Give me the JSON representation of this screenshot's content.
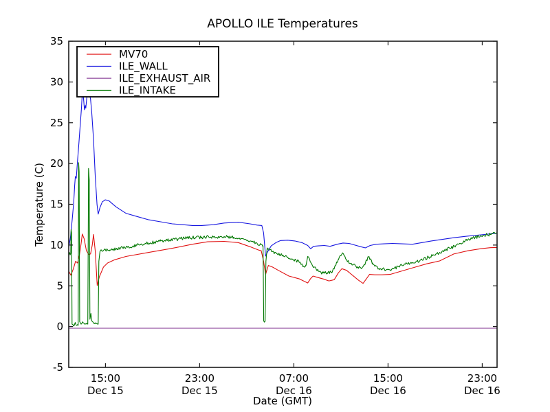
{
  "figure": {
    "background": "#ffffff",
    "axes_color": "#1a1a1a"
  },
  "chart_data": {
    "type": "line",
    "title": "APOLLO ILE Temperatures",
    "xlabel": "Date (GMT)",
    "ylabel": "Temperature (C)",
    "grid": false,
    "legend_position": "upper-left",
    "ylim": [
      -5,
      35
    ],
    "y_ticks": [
      -5,
      0,
      5,
      10,
      15,
      20,
      25,
      30,
      35
    ],
    "xlim_hours": [
      0,
      36.38
    ],
    "x_ticks": [
      {
        "h": 3.12,
        "time": "15:00",
        "date": "Dec 15"
      },
      {
        "h": 11.12,
        "time": "23:00",
        "date": "Dec 15"
      },
      {
        "h": 19.12,
        "time": "07:00",
        "date": "Dec 16"
      },
      {
        "h": 27.12,
        "time": "15:00",
        "date": "Dec 16"
      },
      {
        "h": 35.12,
        "time": "23:00",
        "date": "Dec 16"
      }
    ],
    "series": [
      {
        "name": "MV70",
        "color": "#e01010",
        "noise": 0,
        "points": [
          [
            0,
            6.8
          ],
          [
            0.18,
            6.3
          ],
          [
            0.4,
            7.1
          ],
          [
            0.58,
            8.0
          ],
          [
            0.75,
            7.8
          ],
          [
            0.9,
            8.7
          ],
          [
            1.05,
            10.2
          ],
          [
            1.15,
            11.35
          ],
          [
            1.3,
            10.8
          ],
          [
            1.5,
            9.3
          ],
          [
            1.7,
            8.85
          ],
          [
            1.85,
            8.9
          ],
          [
            2.0,
            10.0
          ],
          [
            2.1,
            11.3
          ],
          [
            2.25,
            9.3
          ],
          [
            2.42,
            5.05
          ],
          [
            2.6,
            6.1
          ],
          [
            2.95,
            7.3
          ],
          [
            3.3,
            7.8
          ],
          [
            3.9,
            8.2
          ],
          [
            4.85,
            8.6
          ],
          [
            6.8,
            9.1
          ],
          [
            8.8,
            9.6
          ],
          [
            10.5,
            10.1
          ],
          [
            11.8,
            10.4
          ],
          [
            13.2,
            10.45
          ],
          [
            14.4,
            10.3
          ],
          [
            15.4,
            9.8
          ],
          [
            16.1,
            9.4
          ],
          [
            16.35,
            9.3
          ],
          [
            16.55,
            8.0
          ],
          [
            16.72,
            6.4
          ],
          [
            16.95,
            7.5
          ],
          [
            17.3,
            7.3
          ],
          [
            17.8,
            6.9
          ],
          [
            18.7,
            6.2
          ],
          [
            19.6,
            5.85
          ],
          [
            20.3,
            5.35
          ],
          [
            20.55,
            5.9
          ],
          [
            20.75,
            6.2
          ],
          [
            21.1,
            6.05
          ],
          [
            21.6,
            5.85
          ],
          [
            22.1,
            5.6
          ],
          [
            22.55,
            5.75
          ],
          [
            22.9,
            6.6
          ],
          [
            23.2,
            7.1
          ],
          [
            23.6,
            6.9
          ],
          [
            24.1,
            6.3
          ],
          [
            24.6,
            5.7
          ],
          [
            25.0,
            5.3
          ],
          [
            25.35,
            6.0
          ],
          [
            25.55,
            6.4
          ],
          [
            26.0,
            6.35
          ],
          [
            26.6,
            6.35
          ],
          [
            27.3,
            6.4
          ],
          [
            28.0,
            6.7
          ],
          [
            29.2,
            7.2
          ],
          [
            30.4,
            7.7
          ],
          [
            31.5,
            8.05
          ],
          [
            32.7,
            8.9
          ],
          [
            33.9,
            9.3
          ],
          [
            35.0,
            9.55
          ],
          [
            35.8,
            9.68
          ],
          [
            36.35,
            9.7
          ]
        ]
      },
      {
        "name": "ILE_WALL",
        "color": "#1515e0",
        "noise": 0,
        "points": [
          [
            0,
            9.7
          ],
          [
            0.15,
            11.0
          ],
          [
            0.3,
            13.2
          ],
          [
            0.42,
            15.2
          ],
          [
            0.5,
            17.3
          ],
          [
            0.56,
            18.4
          ],
          [
            0.64,
            18.2
          ],
          [
            0.72,
            19.8
          ],
          [
            0.85,
            22.3
          ],
          [
            1.0,
            25.2
          ],
          [
            1.08,
            26.8
          ],
          [
            1.13,
            28.2
          ],
          [
            1.2,
            28.8
          ],
          [
            1.28,
            27.6
          ],
          [
            1.33,
            26.6
          ],
          [
            1.4,
            27.1
          ],
          [
            1.45,
            26.8
          ],
          [
            1.55,
            28.3
          ],
          [
            1.65,
            28.9
          ],
          [
            1.75,
            28.6
          ],
          [
            1.85,
            27.9
          ],
          [
            1.95,
            26.3
          ],
          [
            2.1,
            23.0
          ],
          [
            2.25,
            18.5
          ],
          [
            2.4,
            15.0
          ],
          [
            2.5,
            13.8
          ],
          [
            2.65,
            14.6
          ],
          [
            2.85,
            15.3
          ],
          [
            3.1,
            15.55
          ],
          [
            3.4,
            15.45
          ],
          [
            4.0,
            14.7
          ],
          [
            4.85,
            13.9
          ],
          [
            5.8,
            13.5
          ],
          [
            6.8,
            13.1
          ],
          [
            7.8,
            12.85
          ],
          [
            8.8,
            12.6
          ],
          [
            9.7,
            12.5
          ],
          [
            10.5,
            12.4
          ],
          [
            11.3,
            12.4
          ],
          [
            12.3,
            12.5
          ],
          [
            13.2,
            12.7
          ],
          [
            14.4,
            12.8
          ],
          [
            15.4,
            12.6
          ],
          [
            16.0,
            12.45
          ],
          [
            16.4,
            12.4
          ],
          [
            16.55,
            11.5
          ],
          [
            16.72,
            8.65
          ],
          [
            16.9,
            9.2
          ],
          [
            17.2,
            9.9
          ],
          [
            17.6,
            10.3
          ],
          [
            18.0,
            10.55
          ],
          [
            18.6,
            10.6
          ],
          [
            19.2,
            10.5
          ],
          [
            19.8,
            10.3
          ],
          [
            20.3,
            9.95
          ],
          [
            20.55,
            9.55
          ],
          [
            20.8,
            9.85
          ],
          [
            21.2,
            9.9
          ],
          [
            21.7,
            9.95
          ],
          [
            22.2,
            9.85
          ],
          [
            22.8,
            10.1
          ],
          [
            23.3,
            10.25
          ],
          [
            23.8,
            10.2
          ],
          [
            24.3,
            10.0
          ],
          [
            24.8,
            9.8
          ],
          [
            25.2,
            9.65
          ],
          [
            25.6,
            9.95
          ],
          [
            26.1,
            10.1
          ],
          [
            26.8,
            10.15
          ],
          [
            27.5,
            10.2
          ],
          [
            28.3,
            10.15
          ],
          [
            29.2,
            10.1
          ],
          [
            30.0,
            10.3
          ],
          [
            30.8,
            10.5
          ],
          [
            31.5,
            10.65
          ],
          [
            32.7,
            10.9
          ],
          [
            33.9,
            11.1
          ],
          [
            35.0,
            11.25
          ],
          [
            36.0,
            11.4
          ],
          [
            36.35,
            11.45
          ]
        ]
      },
      {
        "name": "ILE_EXHAUST_AIR",
        "color": "#7d2d8e",
        "noise": 0,
        "points": [
          [
            0,
            -0.2
          ],
          [
            36.35,
            -0.2
          ]
        ]
      },
      {
        "name": "ILE_INTAKE",
        "color": "#007700",
        "noise": 0.2,
        "points": [
          [
            0,
            8.7
          ],
          [
            0.06,
            9.1
          ],
          [
            0.12,
            8.8
          ],
          [
            0.17,
            9.0
          ],
          [
            0.2,
            11.9
          ],
          [
            0.24,
            11.5
          ],
          [
            0.28,
            0.3
          ],
          [
            0.45,
            0.1
          ],
          [
            0.55,
            0.5
          ],
          [
            0.62,
            0.2
          ],
          [
            0.75,
            0.25
          ],
          [
            0.8,
            0.15
          ],
          [
            0.84,
            20.1
          ],
          [
            0.88,
            19.0
          ],
          [
            0.93,
            0.6
          ],
          [
            1.05,
            0.3
          ],
          [
            1.2,
            0.5
          ],
          [
            1.35,
            0.3
          ],
          [
            1.5,
            0.4
          ],
          [
            1.62,
            0.3
          ],
          [
            1.68,
            19.4
          ],
          [
            1.74,
            18.0
          ],
          [
            1.8,
            0.9
          ],
          [
            1.88,
            1.6
          ],
          [
            1.95,
            0.7
          ],
          [
            2.1,
            0.45
          ],
          [
            2.3,
            0.35
          ],
          [
            2.5,
            0.3
          ],
          [
            2.56,
            8.0
          ],
          [
            2.65,
            9.2
          ],
          [
            2.8,
            9.3
          ],
          [
            3.1,
            9.45
          ],
          [
            3.5,
            9.4
          ],
          [
            4.2,
            9.6
          ],
          [
            4.85,
            9.7
          ],
          [
            5.8,
            10.0
          ],
          [
            6.8,
            10.25
          ],
          [
            7.8,
            10.5
          ],
          [
            8.8,
            10.65
          ],
          [
            9.6,
            10.8
          ],
          [
            10.5,
            10.9
          ],
          [
            11.3,
            10.95
          ],
          [
            12.3,
            11.0
          ],
          [
            13.2,
            11.05
          ],
          [
            14.0,
            10.95
          ],
          [
            14.7,
            10.8
          ],
          [
            15.4,
            10.5
          ],
          [
            16.0,
            10.2
          ],
          [
            16.35,
            10.05
          ],
          [
            16.5,
            9.9
          ],
          [
            16.56,
            0.7
          ],
          [
            16.62,
            0.55
          ],
          [
            16.68,
            0.65
          ],
          [
            16.75,
            8.0
          ],
          [
            16.85,
            9.65
          ],
          [
            17.1,
            9.4
          ],
          [
            17.5,
            9.1
          ],
          [
            18.0,
            8.85
          ],
          [
            18.6,
            8.5
          ],
          [
            19.3,
            8.15
          ],
          [
            19.8,
            7.7
          ],
          [
            20.0,
            7.3
          ],
          [
            20.15,
            7.5
          ],
          [
            20.3,
            8.6
          ],
          [
            20.5,
            8.0
          ],
          [
            20.8,
            7.3
          ],
          [
            21.2,
            6.8
          ],
          [
            21.6,
            6.55
          ],
          [
            22.0,
            6.6
          ],
          [
            22.4,
            6.8
          ],
          [
            22.9,
            8.2
          ],
          [
            23.25,
            9.05
          ],
          [
            23.6,
            8.2
          ],
          [
            24.0,
            7.75
          ],
          [
            24.4,
            7.4
          ],
          [
            24.8,
            7.2
          ],
          [
            25.2,
            7.8
          ],
          [
            25.5,
            8.6
          ],
          [
            25.8,
            7.8
          ],
          [
            26.0,
            7.4
          ],
          [
            26.45,
            7.1
          ],
          [
            27.0,
            7.0
          ],
          [
            27.6,
            7.1
          ],
          [
            28.3,
            7.5
          ],
          [
            29.2,
            7.85
          ],
          [
            30.0,
            8.2
          ],
          [
            30.9,
            8.7
          ],
          [
            31.5,
            9.1
          ],
          [
            32.4,
            9.6
          ],
          [
            33.2,
            10.2
          ],
          [
            33.9,
            10.7
          ],
          [
            34.7,
            11.0
          ],
          [
            35.2,
            11.2
          ],
          [
            35.8,
            11.3
          ],
          [
            36.35,
            11.5
          ]
        ]
      }
    ]
  }
}
